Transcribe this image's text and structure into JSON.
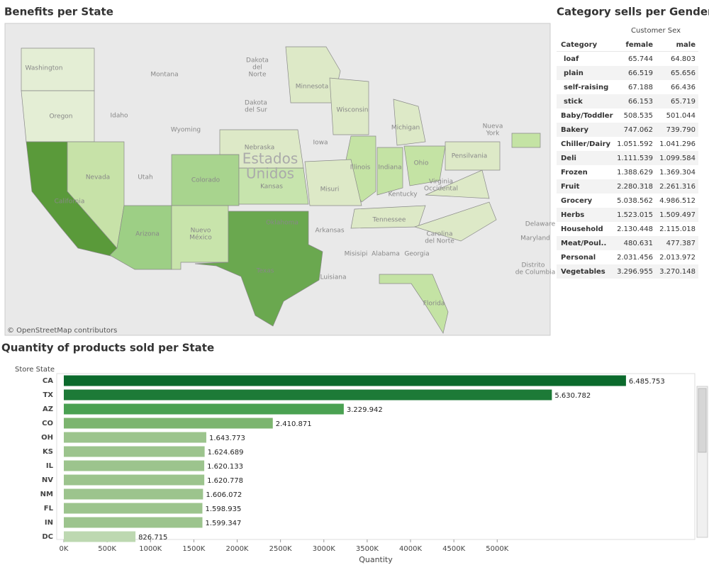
{
  "map": {
    "title": "Benefits per State",
    "attribution": "© OpenStreetMap contributors",
    "labels": [
      "Washington",
      "Oregon",
      "Montana",
      "Idaho",
      "Wyoming",
      "Dakota",
      "del",
      "Norte",
      "Dakota",
      "del Sur",
      "Nevada",
      "Utah",
      "California",
      "Colorado",
      "Arizona",
      "Nuevo",
      "México",
      "Texas",
      "Oklahoma",
      "Kansas",
      "Nebraska",
      "Estados",
      "Unidos",
      "Iowa",
      "Minnesota",
      "Wisconsin",
      "Michigan",
      "Illinois",
      "Indiana",
      "Ohio",
      "Misuri",
      "Kentucky",
      "Virginia",
      "Occidental",
      "Arkansas",
      "Tennessee",
      "Carolina",
      "del Norte",
      "Misisipi",
      "Alabama",
      "Georgia",
      "Luisiana",
      "Florida",
      "Pensilvania",
      "Nueva",
      "York",
      "Delaware",
      "Maryland",
      "Distrito",
      "de Columbia"
    ]
  },
  "table": {
    "title": "Category sells per Gender",
    "group_header": "Customer Sex",
    "columns": [
      "Category",
      "female",
      "male"
    ],
    "rows": [
      [
        "loaf",
        "65.744",
        "64.803"
      ],
      [
        "plain",
        "66.519",
        "65.656"
      ],
      [
        "self-raising",
        "67.188",
        "66.436"
      ],
      [
        "stick",
        "66.153",
        "65.719"
      ],
      [
        "Baby/Toddler",
        "508.535",
        "501.044"
      ],
      [
        "Bakery",
        "747.062",
        "739.790"
      ],
      [
        "Chiller/Dairy",
        "1.051.592",
        "1.041.296"
      ],
      [
        "Deli",
        "1.111.539",
        "1.099.584"
      ],
      [
        "Frozen",
        "1.388.629",
        "1.369.304"
      ],
      [
        "Fruit",
        "2.280.318",
        "2.261.316"
      ],
      [
        "Grocery",
        "5.038.562",
        "4.986.512"
      ],
      [
        "Herbs",
        "1.523.015",
        "1.509.497"
      ],
      [
        "Household",
        "2.130.448",
        "2.115.018"
      ],
      [
        "Meat/Poul..",
        "480.631",
        "477.387"
      ],
      [
        "Personal",
        "2.031.456",
        "2.013.972"
      ],
      [
        "Vegetables",
        "3.296.955",
        "3.270.148"
      ]
    ]
  },
  "chart_data": {
    "type": "hbar",
    "title": "Quantity of products sold per State",
    "y_label": "Store State",
    "x_label": "Quantity",
    "categories": [
      "CA",
      "TX",
      "AZ",
      "CO",
      "OH",
      "KS",
      "IL",
      "NV",
      "NM",
      "FL",
      "IN",
      "DC"
    ],
    "values": [
      6485753,
      5630782,
      3229942,
      2410871,
      1643773,
      1624689,
      1620133,
      1620778,
      1606072,
      1598935,
      1599347,
      826715
    ],
    "value_labels": [
      "6.485.753",
      "5.630.782",
      "3.229.942",
      "2.410.871",
      "1.643.773",
      "1.624.689",
      "1.620.133",
      "1.620.778",
      "1.606.072",
      "1.598.935",
      "1.599.347",
      "826.715"
    ],
    "colors": [
      "#0b6a2c",
      "#1d7a37",
      "#4aa152",
      "#7cb56f",
      "#9cc48d",
      "#9cc48d",
      "#9cc48d",
      "#9cc48d",
      "#9cc48d",
      "#9cc48d",
      "#9cc48d",
      "#bdd8b1"
    ],
    "xlim": [
      0,
      7280000
    ],
    "xticks": [
      {
        "value": 0,
        "label": "0K"
      },
      {
        "value": 500000,
        "label": "500K"
      },
      {
        "value": 1000000,
        "label": "1000K"
      },
      {
        "value": 1500000,
        "label": "1500K"
      },
      {
        "value": 2000000,
        "label": "2000K"
      },
      {
        "value": 2500000,
        "label": "2500K"
      },
      {
        "value": 3000000,
        "label": "3000K"
      },
      {
        "value": 3500000,
        "label": "3500K"
      },
      {
        "value": 4000000,
        "label": "4000K"
      },
      {
        "value": 4500000,
        "label": "4500K"
      },
      {
        "value": 5000000,
        "label": "5000K"
      }
    ]
  }
}
